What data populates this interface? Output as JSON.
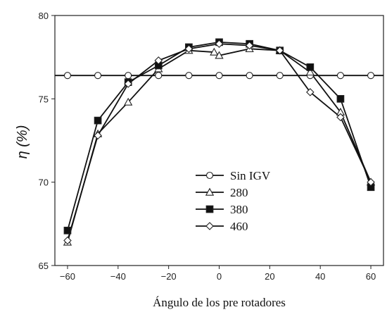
{
  "chart_data": {
    "type": "line",
    "xlabel": "Ángulo de los pre rotadores",
    "ylabel": "η (%)",
    "xlim": [
      -65,
      65
    ],
    "ylim": [
      65,
      80
    ],
    "x_ticks": [
      -60,
      -40,
      -20,
      0,
      20,
      40,
      60
    ],
    "x_tick_labels": [
      "−60",
      "−40",
      "−20",
      "0",
      "20",
      "40",
      "60"
    ],
    "y_ticks": [
      65,
      70,
      75,
      80
    ],
    "y_tick_labels": [
      "65",
      "70",
      "75",
      "80"
    ],
    "grid": false,
    "legend_position": "lower-center",
    "series": [
      {
        "name": "Sin IGV",
        "marker": "circle-open",
        "x": [
          -60,
          -48,
          -36,
          -24,
          -12,
          0,
          12,
          24,
          36,
          48,
          60
        ],
        "values": [
          76.4,
          76.4,
          76.4,
          76.4,
          76.4,
          76.4,
          76.4,
          76.4,
          76.4,
          76.4,
          76.4
        ]
      },
      {
        "name": "280",
        "marker": "triangle-open",
        "x": [
          -60,
          -48,
          -36,
          -24,
          -12,
          -2,
          0,
          12,
          24,
          36,
          48,
          60
        ],
        "values": [
          66.4,
          72.9,
          74.8,
          76.8,
          77.9,
          77.8,
          77.6,
          78.0,
          77.9,
          76.6,
          74.2,
          70.0
        ]
      },
      {
        "name": "380",
        "marker": "square-filled",
        "x": [
          -60,
          -48,
          -36,
          -24,
          -12,
          0,
          12,
          24,
          36,
          48,
          60
        ],
        "values": [
          67.1,
          73.7,
          76.0,
          77.0,
          78.1,
          78.4,
          78.3,
          77.9,
          76.9,
          75.0,
          69.7
        ]
      },
      {
        "name": "460",
        "marker": "diamond-open",
        "x": [
          -60,
          -48,
          -36,
          -24,
          -12,
          0,
          12,
          24,
          36,
          48,
          60
        ],
        "values": [
          66.5,
          72.8,
          75.9,
          77.3,
          78.0,
          78.3,
          78.2,
          77.9,
          75.4,
          73.9,
          70.0
        ]
      }
    ]
  }
}
